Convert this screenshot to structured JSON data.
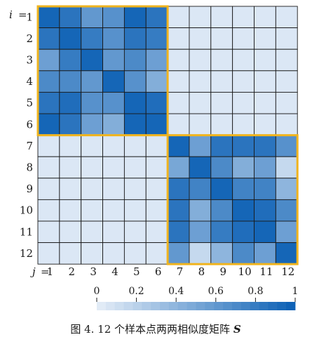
{
  "chart_data": {
    "type": "heatmap",
    "title": "",
    "row_axis_var": "i",
    "col_axis_var": "j",
    "row_labels": [
      "1",
      "2",
      "3",
      "4",
      "5",
      "6",
      "7",
      "8",
      "9",
      "10",
      "11",
      "12"
    ],
    "col_labels": [
      "1",
      "2",
      "3",
      "4",
      "5",
      "6",
      "7",
      "8",
      "9",
      "10",
      "11",
      "12"
    ],
    "values": [
      [
        0.95,
        0.85,
        0.6,
        0.65,
        0.95,
        0.85,
        0.05,
        0.05,
        0.05,
        0.05,
        0.05,
        0.05
      ],
      [
        0.85,
        0.95,
        0.8,
        0.65,
        0.85,
        0.8,
        0.05,
        0.05,
        0.05,
        0.05,
        0.05,
        0.05
      ],
      [
        0.55,
        0.8,
        0.95,
        0.6,
        0.7,
        0.55,
        0.05,
        0.05,
        0.05,
        0.05,
        0.05,
        0.05
      ],
      [
        0.7,
        0.7,
        0.6,
        0.95,
        0.65,
        0.45,
        0.05,
        0.05,
        0.05,
        0.05,
        0.05,
        0.05
      ],
      [
        0.85,
        0.9,
        0.65,
        0.65,
        0.95,
        0.9,
        0.05,
        0.05,
        0.05,
        0.05,
        0.05,
        0.05
      ],
      [
        0.95,
        0.85,
        0.55,
        0.45,
        0.95,
        0.95,
        0.05,
        0.05,
        0.05,
        0.05,
        0.05,
        0.05
      ],
      [
        0.05,
        0.05,
        0.05,
        0.05,
        0.05,
        0.05,
        0.95,
        0.55,
        0.85,
        0.85,
        0.85,
        0.65
      ],
      [
        0.05,
        0.05,
        0.05,
        0.05,
        0.05,
        0.05,
        0.5,
        0.95,
        0.7,
        0.45,
        0.55,
        0.15
      ],
      [
        0.05,
        0.05,
        0.05,
        0.05,
        0.05,
        0.05,
        0.85,
        0.75,
        0.95,
        0.75,
        0.75,
        0.4
      ],
      [
        0.05,
        0.05,
        0.05,
        0.05,
        0.05,
        0.05,
        0.85,
        0.45,
        0.7,
        0.95,
        0.9,
        0.7
      ],
      [
        0.05,
        0.05,
        0.05,
        0.05,
        0.05,
        0.05,
        0.85,
        0.55,
        0.8,
        0.9,
        0.95,
        0.55
      ],
      [
        0.05,
        0.05,
        0.05,
        0.05,
        0.05,
        0.05,
        0.6,
        0.15,
        0.4,
        0.7,
        0.55,
        0.95
      ]
    ],
    "value_range": [
      0,
      1
    ],
    "colorbar": {
      "ticks": [
        "0",
        "0.2",
        "0.4",
        "0.6",
        "0.8",
        "1"
      ],
      "tick_values": [
        0,
        0.2,
        0.4,
        0.6,
        0.8,
        1
      ],
      "color_low": "#e6eef8",
      "color_high": "#0a5fb4",
      "segments": 22
    },
    "clusters": [
      {
        "rows": [
          1,
          6
        ],
        "cols": [
          1,
          6
        ]
      },
      {
        "rows": [
          7,
          12
        ],
        "cols": [
          7,
          12
        ]
      }
    ],
    "cluster_border_color": "#f0b41e",
    "grid_line_color": "#1a1a1a"
  },
  "caption": {
    "text": "图 4. 12 个样本点两两相似度矩阵 ",
    "symbol": "S"
  }
}
